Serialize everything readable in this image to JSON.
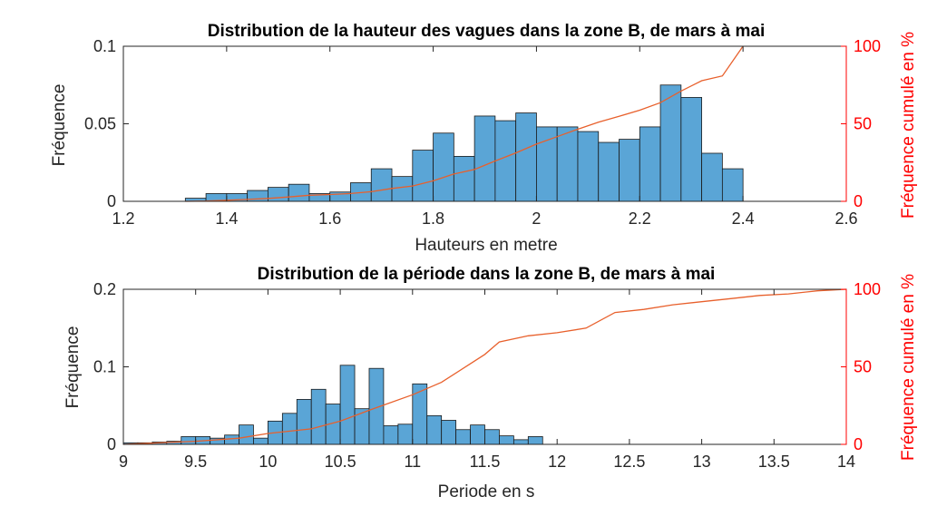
{
  "colors": {
    "bar_fill": "#5aa5d6",
    "bar_edge": "#1a1a1a",
    "cumulative_line": "#e8602c",
    "right_axis": "#ff0000",
    "axis": "#262626"
  },
  "chart_data": [
    {
      "type": "bar",
      "title": "Distribution de la hauteur des vagues dans la zone B, de mars à mai",
      "xlabel": "Hauteurs en metre",
      "ylabel": "Fréquence",
      "y2label": "Fréquence cumulé en %",
      "xlim": [
        1.2,
        2.6
      ],
      "ylim": [
        0,
        0.1
      ],
      "y2lim": [
        0,
        100
      ],
      "xticks": [
        "1.2",
        "1.4",
        "1.6",
        "1.8",
        "2",
        "2.2",
        "2.4",
        "2.6"
      ],
      "yticks": [
        "0",
        "0.05",
        "0.1"
      ],
      "y2ticks": [
        "0",
        "50",
        "100"
      ],
      "bins": [
        [
          1.32,
          1.36,
          0.002
        ],
        [
          1.36,
          1.4,
          0.005
        ],
        [
          1.4,
          1.44,
          0.005
        ],
        [
          1.44,
          1.48,
          0.007
        ],
        [
          1.48,
          1.52,
          0.009
        ],
        [
          1.52,
          1.56,
          0.011
        ],
        [
          1.56,
          1.6,
          0.005
        ],
        [
          1.6,
          1.64,
          0.006
        ],
        [
          1.64,
          1.68,
          0.012
        ],
        [
          1.68,
          1.72,
          0.021
        ],
        [
          1.72,
          1.76,
          0.016
        ],
        [
          1.76,
          1.8,
          0.033
        ],
        [
          1.8,
          1.84,
          0.044
        ],
        [
          1.84,
          1.88,
          0.029
        ],
        [
          1.88,
          1.92,
          0.055
        ],
        [
          1.92,
          1.96,
          0.052
        ],
        [
          1.96,
          2.0,
          0.057
        ],
        [
          2.0,
          2.04,
          0.048
        ],
        [
          2.04,
          2.08,
          0.048
        ],
        [
          2.08,
          2.12,
          0.045
        ],
        [
          2.12,
          2.16,
          0.038
        ],
        [
          2.16,
          2.2,
          0.04
        ],
        [
          2.2,
          2.24,
          0.048
        ],
        [
          2.24,
          2.28,
          0.075
        ],
        [
          2.28,
          2.32,
          0.067
        ],
        [
          2.32,
          2.36,
          0.031
        ],
        [
          2.36,
          2.4,
          0.021
        ]
      ],
      "cumulative_percent": {
        "x": [
          1.32,
          1.36,
          1.4,
          1.44,
          1.48,
          1.52,
          1.56,
          1.6,
          1.64,
          1.68,
          1.72,
          1.76,
          1.8,
          1.84,
          1.88,
          1.92,
          1.96,
          2.0,
          2.04,
          2.08,
          2.12,
          2.16,
          2.2,
          2.24,
          2.28,
          2.32,
          2.36,
          2.4
        ],
        "y": [
          0,
          0.2,
          0.7,
          1.2,
          1.9,
          2.8,
          3.9,
          4.4,
          5.0,
          6.2,
          8.3,
          9.9,
          13.2,
          17.6,
          20.5,
          26.0,
          31.2,
          36.9,
          41.7,
          46.5,
          51.0,
          54.8,
          58.8,
          63.6,
          71.1,
          77.8,
          80.9,
          100
        ]
      }
    },
    {
      "type": "bar",
      "title": "Distribution de la période dans la zone B, de mars à mai",
      "xlabel": "Periode en s",
      "ylabel": "Fréquence",
      "y2label": "Fréquence cumulé en %",
      "xlim": [
        9,
        14
      ],
      "ylim": [
        0,
        0.2
      ],
      "y2lim": [
        0,
        100
      ],
      "xticks": [
        "9",
        "9.5",
        "10",
        "10.5",
        "11",
        "11.5",
        "12",
        "12.5",
        "13",
        "13.5",
        "14"
      ],
      "yticks": [
        "0",
        "0.1",
        "0.2"
      ],
      "y2ticks": [
        "0",
        "50",
        "100"
      ],
      "bins": [
        [
          9.0,
          9.1,
          0.002
        ],
        [
          9.1,
          9.2,
          0.002
        ],
        [
          9.2,
          9.3,
          0.003
        ],
        [
          9.3,
          9.4,
          0.004
        ],
        [
          9.4,
          9.5,
          0.01
        ],
        [
          9.5,
          9.6,
          0.01
        ],
        [
          9.6,
          9.7,
          0.008
        ],
        [
          9.7,
          9.8,
          0.012
        ],
        [
          9.8,
          9.9,
          0.025
        ],
        [
          9.9,
          10.0,
          0.008
        ],
        [
          10.0,
          10.1,
          0.03
        ],
        [
          10.1,
          10.2,
          0.04
        ],
        [
          10.2,
          10.3,
          0.058
        ],
        [
          10.3,
          10.4,
          0.071
        ],
        [
          10.4,
          10.5,
          0.052
        ],
        [
          10.5,
          10.6,
          0.102
        ],
        [
          10.6,
          10.7,
          0.046
        ],
        [
          10.7,
          10.8,
          0.098
        ],
        [
          10.8,
          10.9,
          0.024
        ],
        [
          10.9,
          11.0,
          0.026
        ],
        [
          11.0,
          11.1,
          0.078
        ],
        [
          11.1,
          11.2,
          0.037
        ],
        [
          11.2,
          11.3,
          0.031
        ],
        [
          11.3,
          11.4,
          0.019
        ],
        [
          11.4,
          11.5,
          0.025
        ],
        [
          11.5,
          11.6,
          0.019
        ],
        [
          11.6,
          11.7,
          0.011
        ],
        [
          11.7,
          11.8,
          0.006
        ],
        [
          11.8,
          11.9,
          0.01
        ]
      ],
      "cumulative_percent": {
        "x": [
          9.0,
          9.5,
          9.8,
          10.0,
          10.3,
          10.5,
          10.7,
          11.0,
          11.2,
          11.4,
          11.5,
          11.6,
          11.8,
          12.0,
          12.2,
          12.4,
          12.6,
          12.8,
          13.0,
          13.2,
          13.4,
          13.6,
          13.8,
          14.0
        ],
        "y": [
          0,
          2,
          4,
          7,
          10,
          15,
          22,
          32,
          40,
          52,
          58,
          66,
          70,
          72,
          75,
          85,
          87,
          90,
          92,
          94,
          96,
          97,
          99,
          100
        ]
      }
    }
  ]
}
